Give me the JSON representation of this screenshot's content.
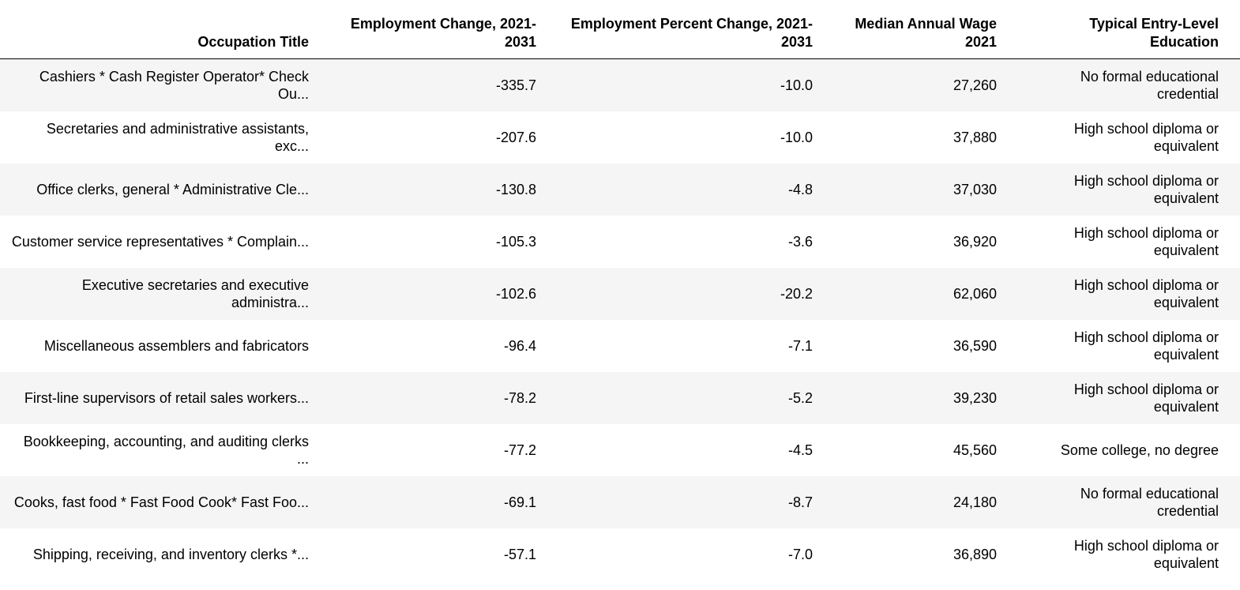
{
  "columns": [
    "Occupation Title",
    "Employment Change, 2021-2031",
    "Employment Percent Change, 2021-2031",
    "Median Annual Wage 2021",
    "Typical Entry-Level Education"
  ],
  "rows": [
    {
      "title": "Cashiers * Cash Register Operator* Check Ou...",
      "change": "-335.7",
      "pct": "-10.0",
      "wage": "27,260",
      "edu": "No formal educational credential"
    },
    {
      "title": "Secretaries and administrative assistants, exc...",
      "change": "-207.6",
      "pct": "-10.0",
      "wage": "37,880",
      "edu": "High school diploma or equivalent"
    },
    {
      "title": "Office clerks, general * Administrative Cle...",
      "change": "-130.8",
      "pct": "-4.8",
      "wage": "37,030",
      "edu": "High school diploma or equivalent"
    },
    {
      "title": "Customer service representatives * Complain...",
      "change": "-105.3",
      "pct": "-3.6",
      "wage": "36,920",
      "edu": "High school diploma or equivalent"
    },
    {
      "title": "Executive secretaries and executive administra...",
      "change": "-102.6",
      "pct": "-20.2",
      "wage": "62,060",
      "edu": "High school diploma or equivalent"
    },
    {
      "title": "Miscellaneous assemblers and fabricators",
      "change": "-96.4",
      "pct": "-7.1",
      "wage": "36,590",
      "edu": "High school diploma or equivalent"
    },
    {
      "title": "First-line supervisors of retail sales workers...",
      "change": "-78.2",
      "pct": "-5.2",
      "wage": "39,230",
      "edu": "High school diploma or equivalent"
    },
    {
      "title": "Bookkeeping, accounting, and auditing clerks ...",
      "change": "-77.2",
      "pct": "-4.5",
      "wage": "45,560",
      "edu": "Some college, no degree"
    },
    {
      "title": "Cooks, fast food * Fast Food Cook* Fast Foo...",
      "change": "-69.1",
      "pct": "-8.7",
      "wage": "24,180",
      "edu": "No formal educational credential"
    },
    {
      "title": "Shipping, receiving, and inventory clerks *...",
      "change": "-57.1",
      "pct": "-7.0",
      "wage": "36,890",
      "edu": "High school diploma or equivalent"
    }
  ]
}
